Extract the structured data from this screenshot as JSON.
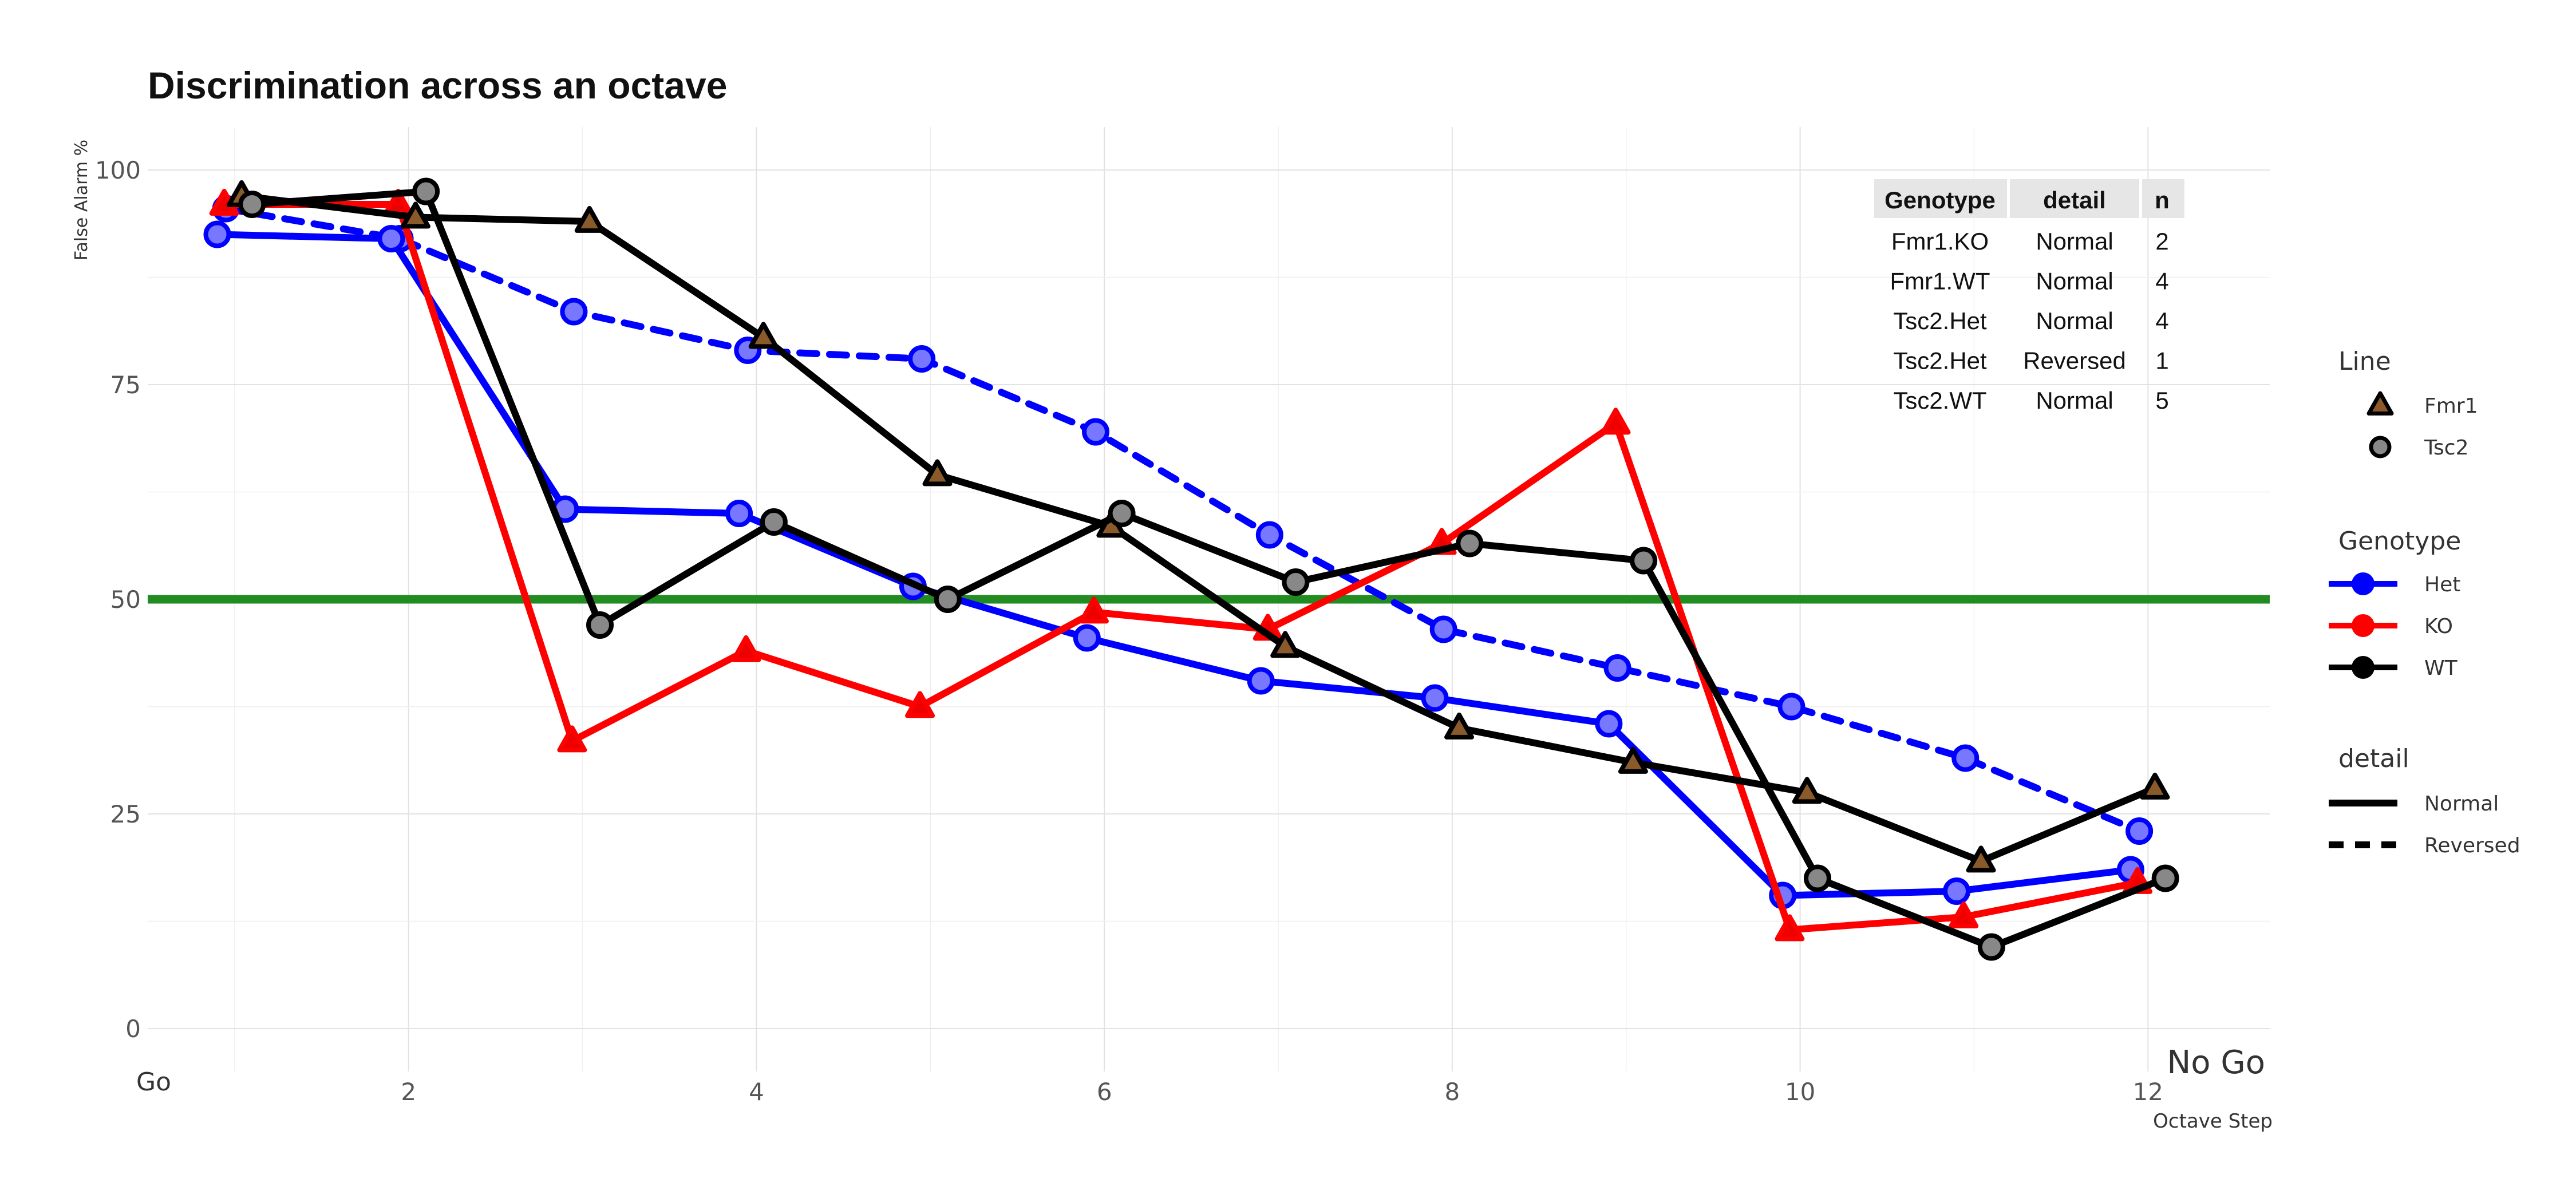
{
  "chart_data": {
    "type": "line",
    "title": "Discrimination across an octave",
    "xlabel": "Octave Step",
    "ylabel": "False Alarm %",
    "x_end_labels": {
      "left": "Go",
      "right": "No Go"
    },
    "xlim": [
      0.5,
      12.7
    ],
    "ylim": [
      -5,
      105
    ],
    "x_ticks": [
      2,
      4,
      6,
      8,
      10,
      12
    ],
    "y_ticks": [
      0,
      25,
      50,
      75,
      100
    ],
    "grid": true,
    "reference_line": {
      "y": 50,
      "color": "#228B22"
    },
    "colors": {
      "Het": "#0000FF",
      "KO": "#FF0000",
      "WT": "#000000"
    },
    "x": [
      1,
      2,
      3,
      4,
      5,
      6,
      7,
      8,
      9,
      10,
      11,
      12
    ],
    "series": [
      {
        "line": "Tsc2",
        "genotype": "Het",
        "detail": "Reversed",
        "values": [
          95.5,
          92.0,
          83.5,
          79.0,
          78.0,
          69.5,
          57.5,
          46.5,
          42.0,
          37.5,
          31.5,
          23.0
        ]
      },
      {
        "line": "Tsc2",
        "genotype": "Het",
        "detail": "Normal",
        "values": [
          92.5,
          92.0,
          60.5,
          60.0,
          51.5,
          45.5,
          40.5,
          38.5,
          35.5,
          15.5,
          16.0,
          18.5
        ]
      },
      {
        "line": "Fmr1",
        "genotype": "KO",
        "detail": "Normal",
        "values": [
          96.0,
          96.0,
          33.5,
          44.0,
          37.5,
          48.5,
          46.5,
          56.5,
          70.5,
          11.5,
          13.0,
          17.0
        ]
      },
      {
        "line": "Fmr1",
        "genotype": "WT",
        "detail": "Normal",
        "values": [
          97.0,
          94.5,
          94.0,
          80.5,
          64.5,
          58.5,
          44.5,
          35.0,
          31.0,
          27.5,
          19.5,
          28.0
        ]
      },
      {
        "line": "Tsc2",
        "genotype": "WT",
        "detail": "Normal",
        "values": [
          96.0,
          97.5,
          47.0,
          59.0,
          50.0,
          60.0,
          52.0,
          56.5,
          54.5,
          17.5,
          9.5,
          17.5
        ]
      }
    ],
    "legends": [
      {
        "title": "Line",
        "items": [
          {
            "label": "Fmr1",
            "shape": "triangle"
          },
          {
            "label": "Tsc2",
            "shape": "circle"
          }
        ]
      },
      {
        "title": "Genotype",
        "items": [
          {
            "label": "Het",
            "color": "#0000FF"
          },
          {
            "label": "KO",
            "color": "#FF0000"
          },
          {
            "label": "WT",
            "color": "#000000"
          }
        ]
      },
      {
        "title": "detail",
        "items": [
          {
            "label": "Normal",
            "dash": "solid"
          },
          {
            "label": "Reversed",
            "dash": "dashed"
          }
        ]
      }
    ],
    "table": {
      "columns": [
        "Genotype",
        "detail",
        "n"
      ],
      "rows": [
        [
          "Fmr1.KO",
          "Normal",
          "2"
        ],
        [
          "Fmr1.WT",
          "Normal",
          "4"
        ],
        [
          "Tsc2.Het",
          "Normal",
          "4"
        ],
        [
          "Tsc2.Het",
          "Reversed",
          "1"
        ],
        [
          "Tsc2.WT",
          "Normal",
          "5"
        ]
      ]
    }
  }
}
